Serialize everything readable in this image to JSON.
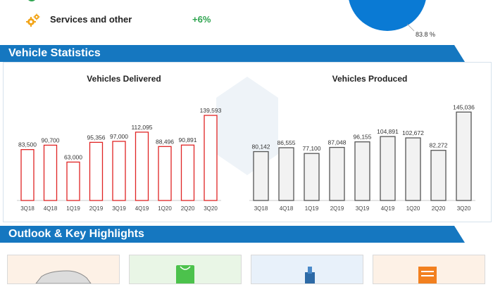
{
  "services": {
    "label": "Services and other",
    "value": "+6%"
  },
  "pie": {
    "percent_label": "83.8 %",
    "color": "#0a7ad4"
  },
  "sections": {
    "vehicle_statistics": "Vehicle Statistics",
    "outlook": "Outlook & Key Highlights"
  },
  "colors": {
    "banner": "#1577c0",
    "delivered_bar": "#e02424",
    "produced_bar": "#555555"
  },
  "chart_data": [
    {
      "type": "bar",
      "title": "Vehicles Delivered",
      "categories": [
        "3Q18",
        "4Q18",
        "1Q19",
        "2Q19",
        "3Q19",
        "4Q19",
        "1Q20",
        "2Q20",
        "3Q20"
      ],
      "values": [
        83500,
        90700,
        63000,
        95356,
        97000,
        112095,
        88496,
        90891,
        139593
      ],
      "value_labels": [
        "83,500",
        "90,700",
        "63,000",
        "95,356",
        "97,000",
        "112,095",
        "88,496",
        "90,891",
        "139,593"
      ],
      "ylim": [
        0,
        150000
      ],
      "xlabel": "",
      "ylabel": "",
      "grid": false
    },
    {
      "type": "bar",
      "title": "Vehicles Produced",
      "categories": [
        "3Q18",
        "4Q18",
        "1Q19",
        "2Q19",
        "3Q19",
        "4Q19",
        "1Q20",
        "2Q20",
        "3Q20"
      ],
      "values": [
        80142,
        86555,
        77100,
        87048,
        96155,
        104891,
        102672,
        82272,
        145036
      ],
      "value_labels": [
        "80,142",
        "86,555",
        "77,100",
        "87,048",
        "96,155",
        "104,891",
        "102,672",
        "82,272",
        "145,036"
      ],
      "ylim": [
        0,
        150000
      ],
      "xlabel": "",
      "ylabel": "",
      "grid": false
    }
  ],
  "cards": [
    {
      "icon": "car-icon",
      "bg": "#fdf1e6"
    },
    {
      "icon": "shopping-bag-icon",
      "bg": "#e9f6e6"
    },
    {
      "icon": "robot-icon",
      "bg": "#e8f1fa"
    },
    {
      "icon": "document-icon",
      "bg": "#fdf1e6"
    }
  ]
}
